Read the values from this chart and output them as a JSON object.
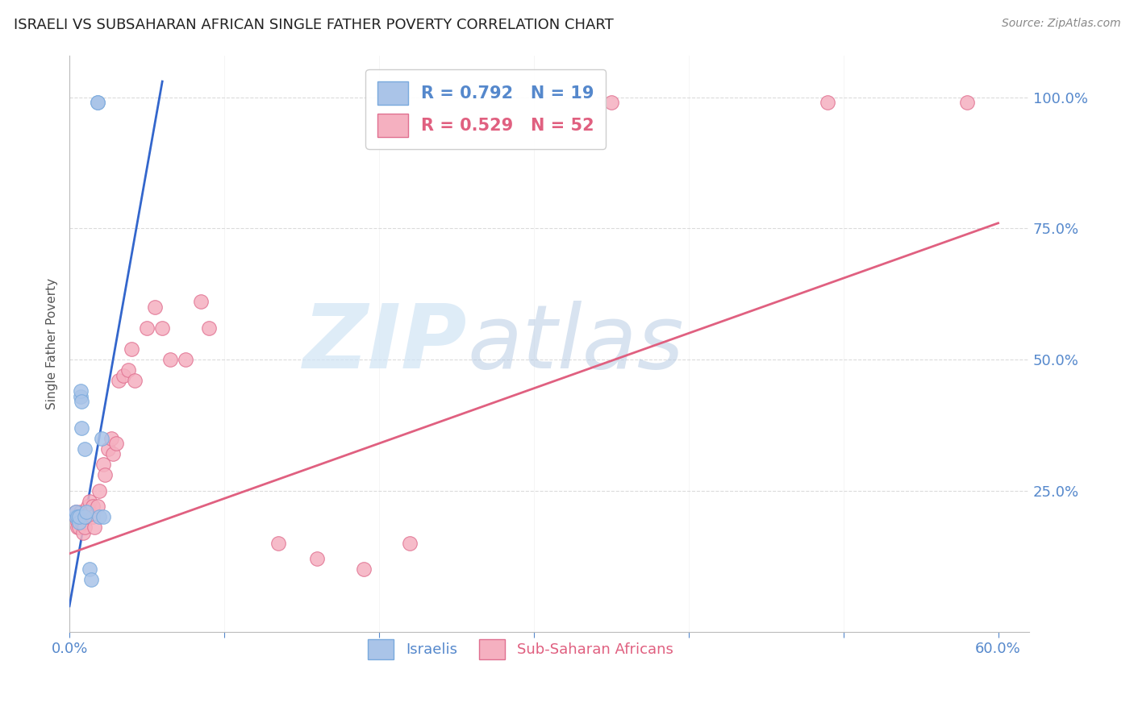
{
  "title": "ISRAELI VS SUBSAHARAN AFRICAN SINGLE FATHER POVERTY CORRELATION CHART",
  "source": "Source: ZipAtlas.com",
  "ylabel": "Single Father Poverty",
  "xlim": [
    0.0,
    0.62
  ],
  "ylim": [
    -0.02,
    1.08
  ],
  "xticks": [
    0.0,
    0.6
  ],
  "xticklabels": [
    "0.0%",
    "60.0%"
  ],
  "ytick_positions": [
    0.0,
    0.25,
    0.5,
    0.75,
    1.0
  ],
  "ytick_labels": [
    "",
    "25.0%",
    "50.0%",
    "75.0%",
    "100.0%"
  ],
  "watermark_zip": "ZIP",
  "watermark_atlas": "atlas",
  "legend_isr_label": "R = 0.792   N = 19",
  "legend_ss_label": "R = 0.529   N = 52",
  "isr_color": "#aac4e8",
  "isr_edge": "#7aaadd",
  "ss_color": "#f5b0c0",
  "ss_edge": "#e07090",
  "blue_line_color": "#3366cc",
  "pink_line_color": "#e06080",
  "grid_color": "#cccccc",
  "tick_color": "#5588cc",
  "israeli_x": [
    0.004,
    0.004,
    0.005,
    0.006,
    0.006,
    0.007,
    0.007,
    0.008,
    0.008,
    0.01,
    0.01,
    0.011,
    0.013,
    0.014,
    0.018,
    0.018,
    0.019,
    0.021,
    0.022
  ],
  "israeli_y": [
    0.2,
    0.21,
    0.2,
    0.19,
    0.2,
    0.43,
    0.44,
    0.42,
    0.37,
    0.33,
    0.2,
    0.21,
    0.1,
    0.08,
    0.99,
    0.99,
    0.2,
    0.35,
    0.2
  ],
  "subsaharan_x": [
    0.004,
    0.004,
    0.005,
    0.005,
    0.005,
    0.006,
    0.006,
    0.006,
    0.007,
    0.007,
    0.007,
    0.008,
    0.008,
    0.009,
    0.009,
    0.01,
    0.01,
    0.011,
    0.011,
    0.012,
    0.013,
    0.013,
    0.015,
    0.015,
    0.016,
    0.018,
    0.019,
    0.022,
    0.023,
    0.025,
    0.027,
    0.028,
    0.03,
    0.032,
    0.035,
    0.038,
    0.04,
    0.042,
    0.05,
    0.055,
    0.06,
    0.065,
    0.075,
    0.085,
    0.09,
    0.135,
    0.16,
    0.19,
    0.22,
    0.35,
    0.49,
    0.58
  ],
  "subsaharan_y": [
    0.2,
    0.21,
    0.19,
    0.2,
    0.18,
    0.2,
    0.19,
    0.18,
    0.2,
    0.21,
    0.2,
    0.19,
    0.2,
    0.17,
    0.19,
    0.18,
    0.2,
    0.21,
    0.2,
    0.22,
    0.21,
    0.23,
    0.22,
    0.2,
    0.18,
    0.22,
    0.25,
    0.3,
    0.28,
    0.33,
    0.35,
    0.32,
    0.34,
    0.46,
    0.47,
    0.48,
    0.52,
    0.46,
    0.56,
    0.6,
    0.56,
    0.5,
    0.5,
    0.61,
    0.56,
    0.15,
    0.12,
    0.1,
    0.15,
    0.99,
    0.99,
    0.99
  ],
  "isr_trend_x": [
    0.0,
    0.06
  ],
  "isr_trend_y": [
    0.03,
    1.03
  ],
  "ss_trend_x": [
    0.0,
    0.6
  ],
  "ss_trend_y": [
    0.13,
    0.76
  ]
}
